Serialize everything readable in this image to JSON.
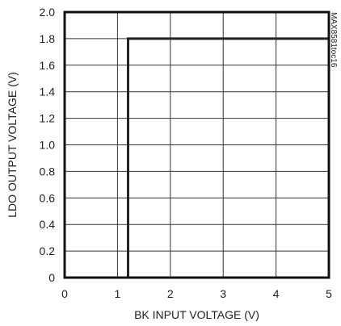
{
  "chart_data": {
    "type": "line",
    "title": "",
    "xlabel": "BK INPUT VOLTAGE (V)",
    "ylabel": "LDO OUTPUT VOLTAGE (V)",
    "figure_code": "MAX8581toc16",
    "xlim": [
      0,
      5
    ],
    "ylim": [
      0,
      2.0
    ],
    "x_ticks": [
      "0",
      "1",
      "2",
      "3",
      "4",
      "5"
    ],
    "y_ticks": [
      "0",
      "0.2",
      "0.4",
      "0.6",
      "0.8",
      "1.0",
      "1.2",
      "1.4",
      "1.6",
      "1.8",
      "2.0"
    ],
    "grid": true,
    "series": [
      {
        "x": [
          0,
          1.2,
          1.2,
          5
        ],
        "y": [
          0,
          0,
          1.8,
          1.8
        ]
      }
    ]
  }
}
